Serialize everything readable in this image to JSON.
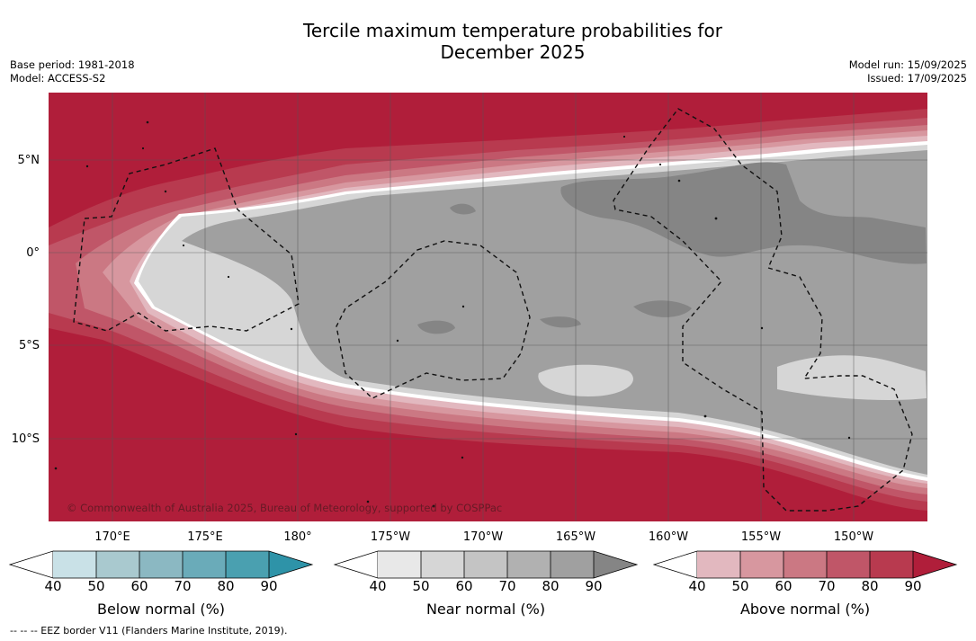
{
  "header": {
    "title_line1": "Tercile maximum temperature probabilities for",
    "title_line2": "December 2025",
    "base_period": "Base period: 1981-2018",
    "model": "Model: ACCESS-S2",
    "model_run": "Model run: 15/09/2025",
    "issued": "Issued: 17/09/2025"
  },
  "map": {
    "lat_labels": [
      "5°N",
      "0°",
      "5°S",
      "10°S"
    ],
    "lon_labels": [
      "170°E",
      "175°E",
      "180°",
      "175°W",
      "170°W",
      "165°W",
      "160°W",
      "155°W",
      "150°W"
    ],
    "copyright": "© Commonwealth of Australia 2025, Bureau of Meteorology, supported by COSPPac"
  },
  "legend": {
    "ticks": [
      "40",
      "50",
      "60",
      "70",
      "80",
      "90"
    ],
    "below": {
      "title": "Below normal (%)",
      "colors": [
        "#c9e1e7",
        "#a9c9cf",
        "#8bb8c2",
        "#6aabb9",
        "#4aa0b0",
        "#2e93a8"
      ]
    },
    "near": {
      "title": "Near normal (%)",
      "colors": [
        "#e8e8e8",
        "#d6d6d6",
        "#c4c4c4",
        "#b1b1b1",
        "#a0a0a0",
        "#858585"
      ]
    },
    "above": {
      "title": "Above normal (%)",
      "colors": [
        "#e2b8bf",
        "#d7979f",
        "#cb7883",
        "#c05668",
        "#b83a4f",
        "#b01e3a"
      ]
    }
  },
  "footer": {
    "eez_note": "--  --  -- EEZ border V11 (Flanders Marine Institute, 2019)."
  }
}
